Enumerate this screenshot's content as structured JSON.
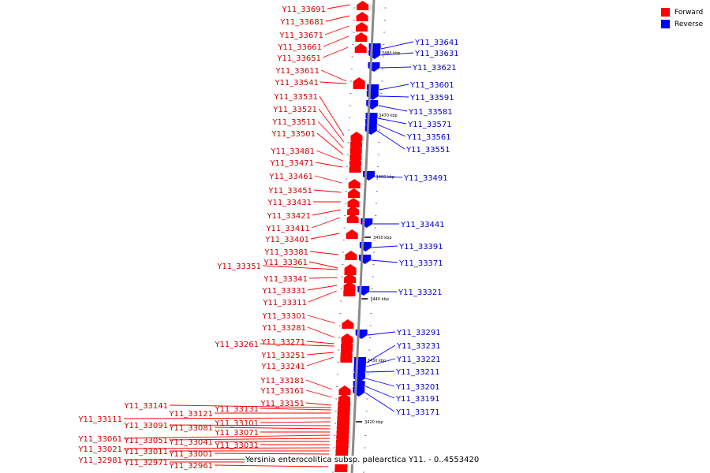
{
  "legend": {
    "forward": {
      "label": "Forward",
      "color": "#ff0000"
    },
    "reverse": {
      "label": "Reverse",
      "color": "#0000ff"
    }
  },
  "footer": "Yersinia enterocolitica subsp. palearctica Y11. - 0..4553420",
  "scale_labels": [
    "3480 kbp",
    "3470 kbp",
    "3460 kbp",
    "3450 kbp",
    "3440 kbp",
    "3430 kbp",
    "3420 kbp"
  ],
  "forward_genes": [
    "Y11_33691",
    "Y11_33681",
    "Y11_33671",
    "Y11_33661",
    "Y11_33651",
    "Y11_33611",
    "Y11_33541",
    "Y11_33531",
    "Y11_33521",
    "Y11_33511",
    "Y11_33501",
    "Y11_33481",
    "Y11_33471",
    "Y11_33461",
    "Y11_33451",
    "Y11_33431",
    "Y11_33421",
    "Y11_33411",
    "Y11_33401",
    "Y11_33381",
    "Y11_33361",
    "Y11_33351",
    "Y11_33341",
    "Y11_33331",
    "Y11_33311",
    "Y11_33301",
    "Y11_33281",
    "Y11_33271",
    "Y11_33261",
    "Y11_33251",
    "Y11_33241",
    "Y11_33181",
    "Y11_33161",
    "Y11_33151",
    "Y11_33141",
    "Y11_33131",
    "Y11_33121",
    "Y11_33111",
    "Y11_33101",
    "Y11_33091",
    "Y11_33081",
    "Y11_33071",
    "Y11_33061",
    "Y11_33051",
    "Y11_33041",
    "Y11_33031",
    "Y11_33021",
    "Y11_33011",
    "Y11_33001",
    "Y11_32981",
    "Y11_32971",
    "Y11_32961"
  ],
  "reverse_genes": [
    "Y11_33641",
    "Y11_33631",
    "Y11_33621",
    "Y11_33601",
    "Y11_33591",
    "Y11_33581",
    "Y11_33571",
    "Y11_33561",
    "Y11_33551",
    "Y11_33491",
    "Y11_33441",
    "Y11_33391",
    "Y11_33371",
    "Y11_33321",
    "Y11_33291",
    "Y11_33231",
    "Y11_33221",
    "Y11_33211",
    "Y11_33201",
    "Y11_33191",
    "Y11_33171"
  ]
}
